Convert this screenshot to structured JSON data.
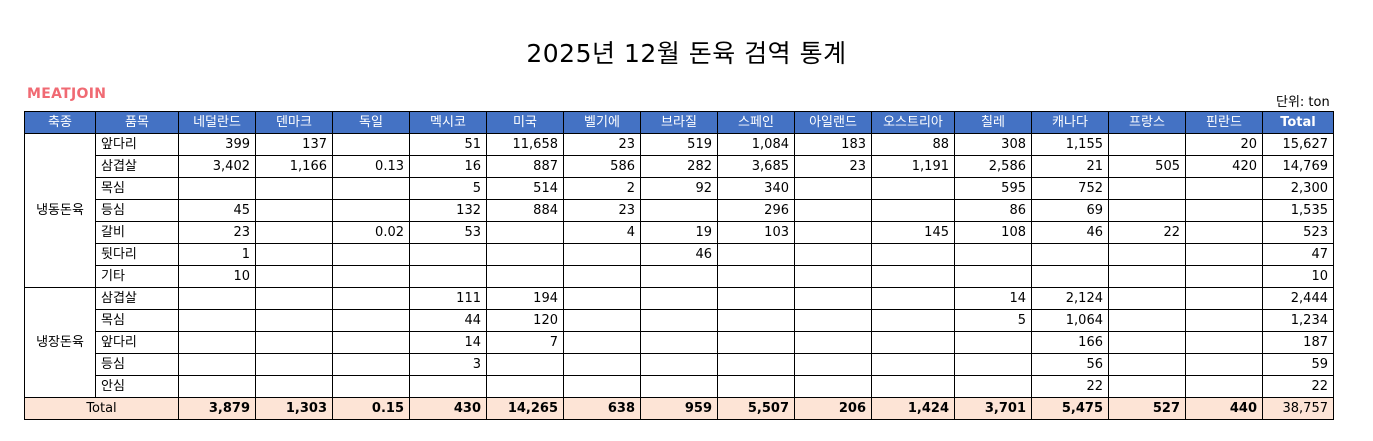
{
  "title": "2025년 12월 돈육  검역 통계",
  "brand": "MEATJOIN",
  "unit": "단위: ton",
  "headers": [
    "축종",
    "품목",
    "네덜란드",
    "덴마크",
    "독일",
    "멕시코",
    "미국",
    "벨기에",
    "브라질",
    "스페인",
    "아일랜드",
    "오스트리아",
    "칠레",
    "캐나다",
    "프랑스",
    "핀란드",
    "Total"
  ],
  "groups": [
    {
      "name": "냉동돈육",
      "rows": [
        {
          "item": "앞다리",
          "values": [
            "399",
            "137",
            "",
            "51",
            "11,658",
            "23",
            "519",
            "1,084",
            "183",
            "88",
            "308",
            "1,155",
            "",
            "20",
            "15,627"
          ]
        },
        {
          "item": "삼겹살",
          "values": [
            "3,402",
            "1,166",
            "0.13",
            "16",
            "887",
            "586",
            "282",
            "3,685",
            "23",
            "1,191",
            "2,586",
            "21",
            "505",
            "420",
            "14,769"
          ]
        },
        {
          "item": "목심",
          "values": [
            "",
            "",
            "",
            "5",
            "514",
            "2",
            "92",
            "340",
            "",
            "",
            "595",
            "752",
            "",
            "",
            "2,300"
          ]
        },
        {
          "item": "등심",
          "values": [
            "45",
            "",
            "",
            "132",
            "884",
            "23",
            "",
            "296",
            "",
            "",
            "86",
            "69",
            "",
            "",
            "1,535"
          ]
        },
        {
          "item": "갈비",
          "values": [
            "23",
            "",
            "0.02",
            "53",
            "",
            "4",
            "19",
            "103",
            "",
            "145",
            "108",
            "46",
            "22",
            "",
            "523"
          ]
        },
        {
          "item": "뒷다리",
          "values": [
            "1",
            "",
            "",
            "",
            "",
            "",
            "46",
            "",
            "",
            "",
            "",
            "",
            "",
            "",
            "47"
          ]
        },
        {
          "item": "기타",
          "values": [
            "10",
            "",
            "",
            "",
            "",
            "",
            "",
            "",
            "",
            "",
            "",
            "",
            "",
            "",
            "10"
          ]
        }
      ]
    },
    {
      "name": "냉장돈육",
      "rows": [
        {
          "item": "삼겹살",
          "values": [
            "",
            "",
            "",
            "111",
            "194",
            "",
            "",
            "",
            "",
            "",
            "14",
            "2,124",
            "",
            "",
            "2,444"
          ]
        },
        {
          "item": "목심",
          "values": [
            "",
            "",
            "",
            "44",
            "120",
            "",
            "",
            "",
            "",
            "",
            "5",
            "1,064",
            "",
            "",
            "1,234"
          ]
        },
        {
          "item": "앞다리",
          "values": [
            "",
            "",
            "",
            "14",
            "7",
            "",
            "",
            "",
            "",
            "",
            "",
            "166",
            "",
            "",
            "187"
          ]
        },
        {
          "item": "등심",
          "values": [
            "",
            "",
            "",
            "3",
            "",
            "",
            "",
            "",
            "",
            "",
            "",
            "56",
            "",
            "",
            "59"
          ]
        },
        {
          "item": "안심",
          "values": [
            "",
            "",
            "",
            "",
            "",
            "",
            "",
            "",
            "",
            "",
            "",
            "22",
            "",
            "",
            "22"
          ]
        }
      ]
    }
  ],
  "total": {
    "label": "Total",
    "values": [
      "3,879",
      "1,303",
      "0.15",
      "430",
      "14,265",
      "638",
      "959",
      "5,507",
      "206",
      "1,424",
      "3,701",
      "5,475",
      "527",
      "440",
      "38,757"
    ]
  }
}
